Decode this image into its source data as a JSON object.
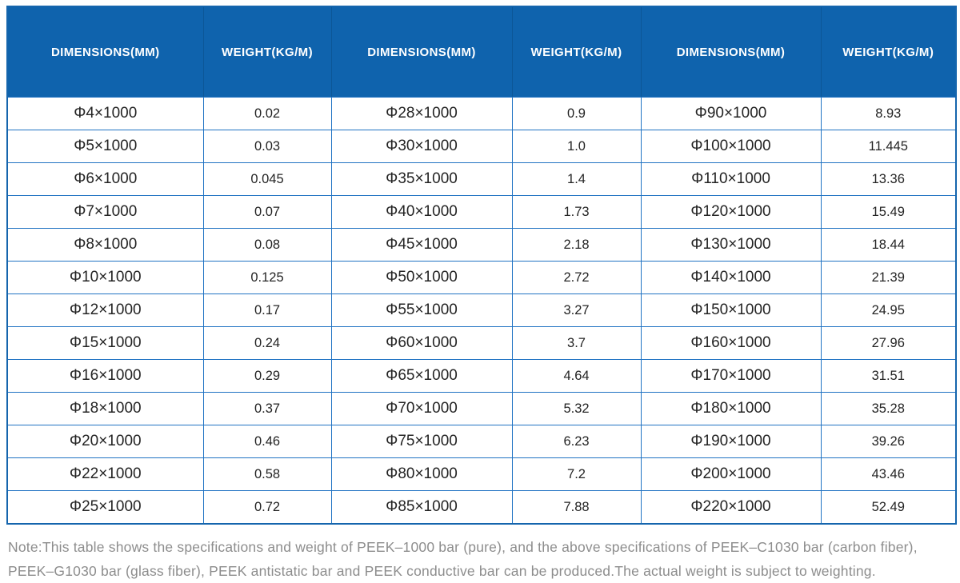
{
  "chart_data": {
    "type": "table",
    "columns": [
      "DIMENSIONS(MM)",
      "WEIGHT(KG/M)",
      "DIMENSIONS(MM)",
      "WEIGHT(KG/M)",
      "DIMENSIONS(MM)",
      "WEIGHT(KG/M)"
    ],
    "rows": [
      [
        "Φ4×1000",
        "0.02",
        "Φ28×1000",
        "0.9",
        "Φ90×1000",
        "8.93"
      ],
      [
        "Φ5×1000",
        "0.03",
        "Φ30×1000",
        "1.0",
        "Φ100×1000",
        "11.445"
      ],
      [
        "Φ6×1000",
        "0.045",
        "Φ35×1000",
        "1.4",
        "Φ110×1000",
        "13.36"
      ],
      [
        "Φ7×1000",
        "0.07",
        "Φ40×1000",
        "1.73",
        "Φ120×1000",
        "15.49"
      ],
      [
        "Φ8×1000",
        "0.08",
        "Φ45×1000",
        "2.18",
        "Φ130×1000",
        "18.44"
      ],
      [
        "Φ10×1000",
        "0.125",
        "Φ50×1000",
        "2.72",
        "Φ140×1000",
        "21.39"
      ],
      [
        "Φ12×1000",
        "0.17",
        "Φ55×1000",
        "3.27",
        "Φ150×1000",
        "24.95"
      ],
      [
        "Φ15×1000",
        "0.24",
        "Φ60×1000",
        "3.7",
        "Φ160×1000",
        "27.96"
      ],
      [
        "Φ16×1000",
        "0.29",
        "Φ65×1000",
        "4.64",
        "Φ170×1000",
        "31.51"
      ],
      [
        "Φ18×1000",
        "0.37",
        "Φ70×1000",
        "5.32",
        "Φ180×1000",
        "35.28"
      ],
      [
        "Φ20×1000",
        "0.46",
        "Φ75×1000",
        "6.23",
        "Φ190×1000",
        "39.26"
      ],
      [
        "Φ22×1000",
        "0.58",
        "Φ80×1000",
        "7.2",
        "Φ200×1000",
        "43.46"
      ],
      [
        "Φ25×1000",
        "0.72",
        "Φ85×1000",
        "7.88",
        "Φ220×1000",
        "52.49"
      ]
    ]
  },
  "note": {
    "line1": "Note:This table shows the specifications and weight of PEEK–1000 bar (pure), and the above specifications of PEEK–C1030 bar (carbon fiber),",
    "line2": "PEEK–G1030 bar (glass fiber), PEEK antistatic bar and PEEK conductive bar can be produced.The actual weight is subject to weighting."
  },
  "colors": {
    "header_bg": "#0f63ad",
    "header_text": "#ffffff",
    "grid_line": "#2173c3",
    "outer_border": "#1565ad",
    "cell_text": "#242424",
    "note_text": "#8d8d8d"
  }
}
